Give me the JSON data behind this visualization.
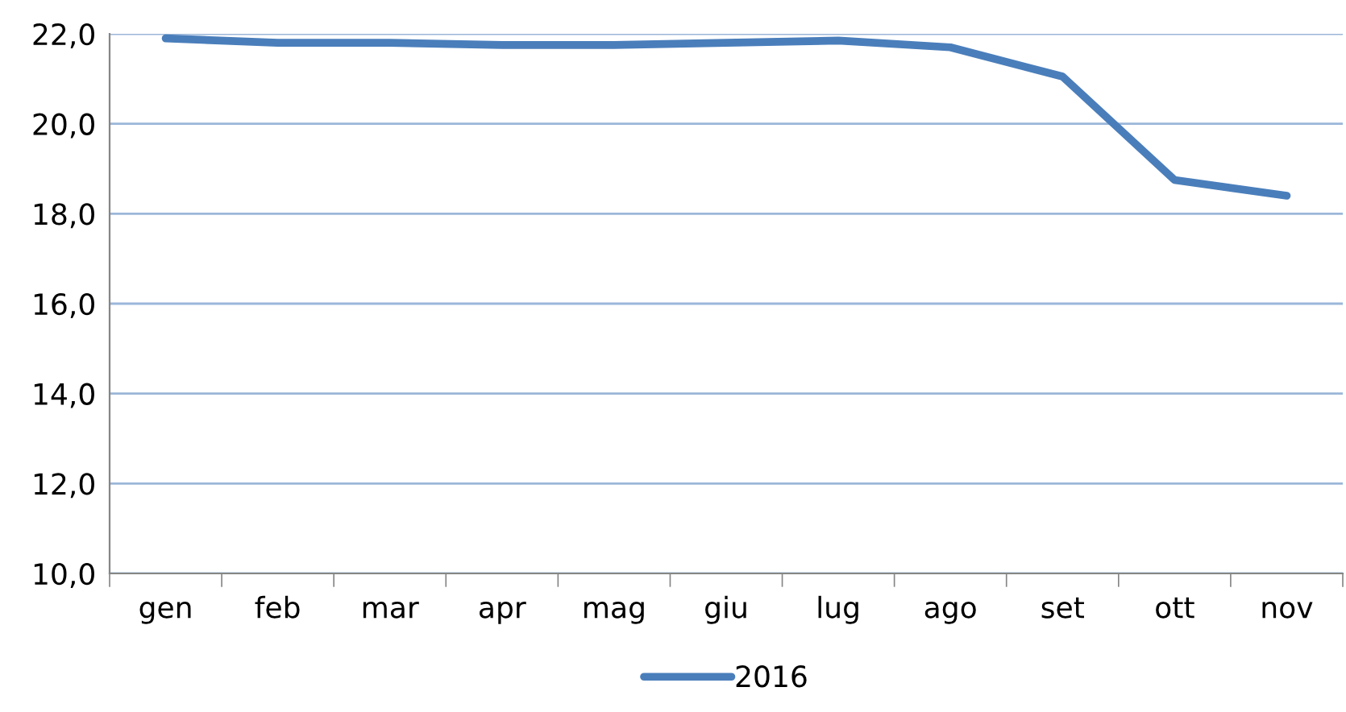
{
  "chart_data": {
    "type": "line",
    "categories": [
      "gen",
      "feb",
      "mar",
      "apr",
      "mag",
      "giu",
      "lug",
      "ago",
      "set",
      "ott",
      "nov"
    ],
    "series": [
      {
        "name": "2016",
        "color": "#4a7ebb",
        "values": [
          21.9,
          21.8,
          21.8,
          21.75,
          21.75,
          21.8,
          21.85,
          21.7,
          21.05,
          18.75,
          18.4
        ]
      }
    ],
    "ylim": [
      10,
      22
    ],
    "yticks": [
      {
        "value": 10,
        "label": "10,0"
      },
      {
        "value": 12,
        "label": "12,0"
      },
      {
        "value": 14,
        "label": "14,0"
      },
      {
        "value": 16,
        "label": "16,0"
      },
      {
        "value": 18,
        "label": "18,0"
      },
      {
        "value": 20,
        "label": "20,0"
      },
      {
        "value": 22,
        "label": "22,0"
      }
    ],
    "grid": "y",
    "legend": "bottom",
    "marker": "none",
    "line_style": "solid"
  }
}
